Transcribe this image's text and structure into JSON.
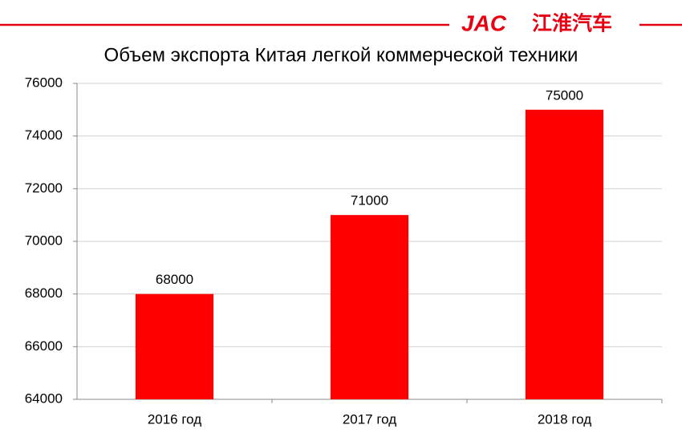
{
  "header": {
    "brand": "JAC",
    "brand_cn": "江淮汽车"
  },
  "chart_data": {
    "type": "bar",
    "title": "Объем экспорта Китая легкой коммерческой техники",
    "categories": [
      "2016 год",
      "2017 год",
      "2018 год"
    ],
    "values": [
      68000,
      71000,
      75000
    ],
    "color": "#ff0000",
    "ylim": [
      64000,
      76000
    ],
    "yticks": [
      64000,
      66000,
      68000,
      70000,
      72000,
      74000,
      76000
    ],
    "grid": true
  }
}
